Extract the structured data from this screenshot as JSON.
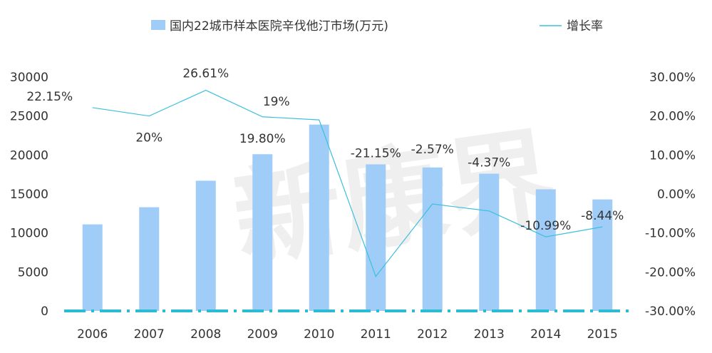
{
  "chart_data": {
    "type": "bar",
    "title": "",
    "xlabel": "",
    "ylabel": "",
    "categories": [
      "2006",
      "2007",
      "2008",
      "2009",
      "2010",
      "2011",
      "2012",
      "2013",
      "2014",
      "2015"
    ],
    "series": [
      {
        "name": "国内22城市样本医院辛伐他汀市场(万元)",
        "type": "bar",
        "axis": "left",
        "color": "#9fcdf8",
        "values": [
          11100,
          13300,
          16700,
          20100,
          23900,
          18800,
          18400,
          17600,
          15600,
          14300
        ]
      },
      {
        "name": "增长率",
        "type": "line",
        "axis": "right",
        "color": "#3cc0dc",
        "values": [
          22.15,
          20,
          26.61,
          19.8,
          19,
          -21.15,
          -2.57,
          -4.37,
          -10.99,
          -8.44
        ],
        "labels": [
          "22.15%",
          "20%",
          "26.61%",
          "19.80%",
          "19%",
          "-21.15%",
          "-2.57%",
          "-4.37%",
          "-10.99%",
          "-8.44%"
        ]
      }
    ],
    "left_axis": {
      "ylim": [
        0,
        30000
      ],
      "ticks": [
        0,
        5000,
        10000,
        15000,
        20000,
        25000,
        30000
      ],
      "tick_labels": [
        "0",
        "5000",
        "10000",
        "15000",
        "20000",
        "25000",
        "30000"
      ]
    },
    "right_axis": {
      "ylim": [
        -30,
        30
      ],
      "ticks": [
        -30,
        -20,
        -10,
        0,
        10,
        20,
        30
      ],
      "tick_labels": [
        "-30.00%",
        "-20.00%",
        "-10.00%",
        "0.00%",
        "10.00%",
        "20.00%",
        "30.00%"
      ]
    },
    "grid": false,
    "legend_position": "top",
    "baseline_color": "#2bbcd4"
  }
}
